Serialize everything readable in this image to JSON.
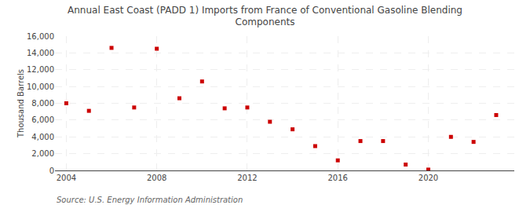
{
  "chart_data": {
    "type": "scatter",
    "title": "Annual East Coast (PADD 1) Imports from France of Conventional Gasoline Blending\nComponents",
    "ylabel": "Thousand Barrels",
    "annotations": [
      "Source: U.S. Energy Information Administration"
    ],
    "x": [
      2004,
      2005,
      2006,
      2007,
      2008,
      2009,
      2010,
      2011,
      2012,
      2013,
      2014,
      2015,
      2016,
      2017,
      2018,
      2019,
      2020,
      2021,
      2022,
      2023
    ],
    "values": [
      8000,
      7100,
      14600,
      7500,
      14500,
      8600,
      10600,
      7400,
      7500,
      5800,
      4900,
      2900,
      1200,
      3500,
      3500,
      700,
      100,
      4000,
      3400,
      6600
    ],
    "color": "#cc0000",
    "marker": "square",
    "xlim": [
      2003.5,
      2023.8
    ],
    "ylim": [
      0,
      16000
    ],
    "xticks": [
      2004,
      2008,
      2012,
      2016,
      2020
    ],
    "yticks": [
      0,
      {
        "value": 2000,
        "label": "2,000"
      },
      {
        "value": 4000,
        "label": "4,000"
      },
      {
        "value": 6000,
        "label": "6,000"
      },
      {
        "value": 8000,
        "label": "8,000"
      },
      {
        "value": 10000,
        "label": "10,000"
      },
      {
        "value": 12000,
        "label": "12,000"
      },
      {
        "value": 14000,
        "label": "14,000"
      },
      {
        "value": 16000,
        "label": "16,000"
      }
    ],
    "grid": true
  }
}
